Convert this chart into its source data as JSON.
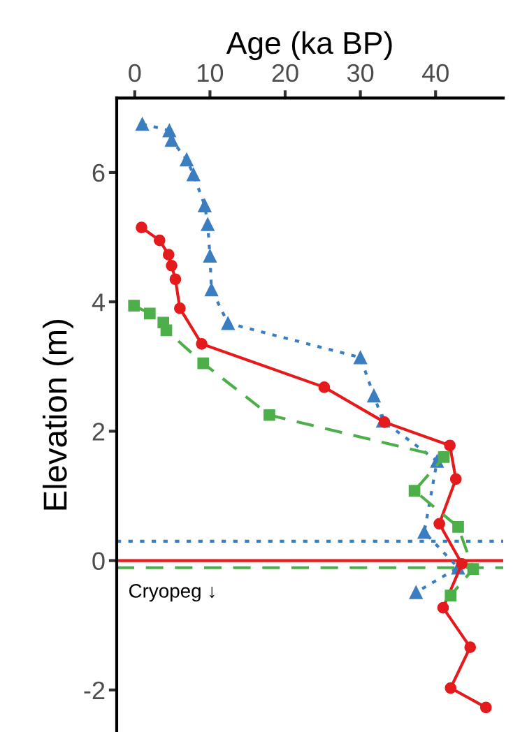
{
  "chart_data": {
    "type": "line",
    "xlabel": "Age (ka BP)",
    "ylabel": "Elevation (m)",
    "xlim": [
      -2.4,
      49
    ],
    "xticks": [
      0,
      10,
      20,
      30,
      40
    ],
    "ylim": [
      -2.65,
      7.15
    ],
    "yticks": [
      -2,
      0,
      2,
      4,
      6
    ],
    "grid": false,
    "series": [
      {
        "color": "#3a7dc0",
        "marker": "triangle",
        "line_style": "dotted",
        "x": [
          1.0,
          4.6,
          4.9,
          6.9,
          7.8,
          9.3,
          9.7,
          10.0,
          10.2,
          12.4,
          30.0,
          31.8,
          33.0,
          40.2,
          38.5,
          43.0,
          37.4
        ],
        "values": [
          6.75,
          6.65,
          6.5,
          6.2,
          5.97,
          5.49,
          5.2,
          4.71,
          4.19,
          3.67,
          3.14,
          2.55,
          2.16,
          1.54,
          0.44,
          -0.11,
          -0.49
        ]
      },
      {
        "color": "#e41a1c",
        "marker": "circle",
        "line_style": "solid",
        "x": [
          0.9,
          3.3,
          4.5,
          4.9,
          5.4,
          6.0,
          8.9,
          25.2,
          33.2,
          41.9,
          42.7,
          40.5,
          43.5,
          41.0,
          44.6,
          42.0,
          46.7
        ],
        "values": [
          5.15,
          4.95,
          4.73,
          4.56,
          4.35,
          3.9,
          3.35,
          2.68,
          2.14,
          1.78,
          1.26,
          0.57,
          -0.05,
          -0.73,
          -1.34,
          -1.97,
          -2.27
        ]
      },
      {
        "color": "#4daf4a",
        "marker": "square",
        "line_style": "dashed",
        "x": [
          -0.1,
          2.0,
          3.8,
          4.2,
          9.1,
          17.9,
          41.1,
          37.2,
          43.0,
          45.0,
          42.0
        ],
        "values": [
          3.94,
          3.82,
          3.68,
          3.56,
          3.05,
          2.25,
          1.6,
          1.08,
          0.52,
          -0.13,
          -0.54
        ]
      }
    ],
    "ref_lines": [
      {
        "axis": "y",
        "value": 0.3,
        "color": "#3a7dc0",
        "line_style": "dotted"
      },
      {
        "axis": "y",
        "value": 0,
        "color": "#e41a1c",
        "line_style": "solid"
      },
      {
        "axis": "y",
        "value": -0.11,
        "color": "#4daf4a",
        "line_style": "dashed"
      }
    ],
    "annotations": [
      "Cryopeg ↓"
    ]
  }
}
